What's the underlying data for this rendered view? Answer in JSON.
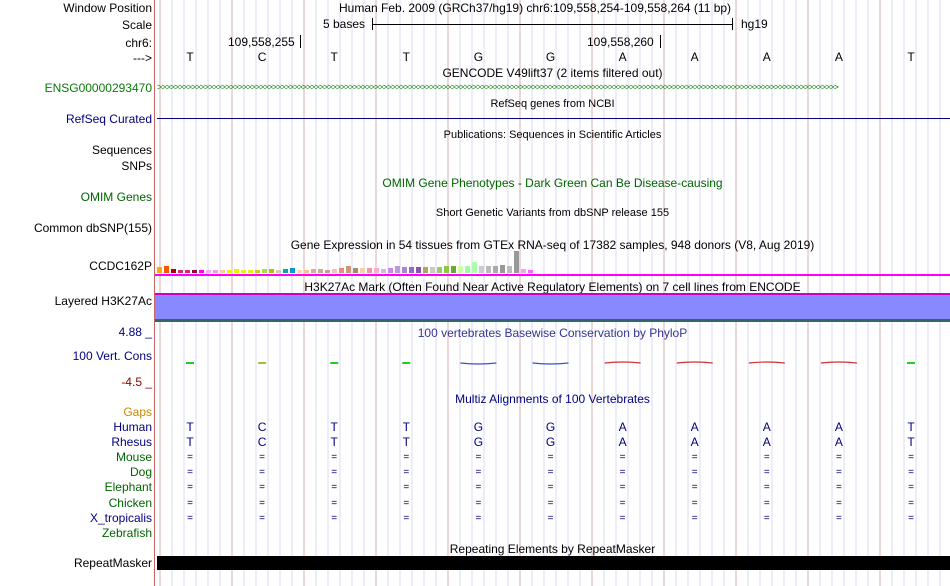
{
  "header": {
    "window_position_label": "Window Position",
    "window_position_value": "Human Feb. 2009 (GRCh37/hg19)   chr6:109,558,254-109,558,264 (11 bp)",
    "scale_label": "Scale",
    "scale_value": "5 bases",
    "scale_assembly": "hg19",
    "chrom_label": "chr6:",
    "coord_1": "109,558,255",
    "coord_2": "109,558,260",
    "strand_label": "--->"
  },
  "sequence": [
    "T",
    "C",
    "T",
    "T",
    "G",
    "G",
    "A",
    "A",
    "A",
    "A",
    "T"
  ],
  "tracks": {
    "gencode": {
      "center_label": "GENCODE V49lift37 (2 items filtered out)",
      "item_label": "ENSG00000293470"
    },
    "refseq": {
      "center_label": "RefSeq genes from NCBI",
      "side_label": "RefSeq Curated"
    },
    "publications": {
      "center_label": "Publications: Sequences in Scientific Articles",
      "side_label_1": "Sequences",
      "side_label_2": "SNPs"
    },
    "omim": {
      "center_label": "OMIM Gene Phenotypes - Dark Green Can Be Disease-causing",
      "side_label": "OMIM Genes"
    },
    "dbsnp": {
      "center_label": "Short Genetic Variants from dbSNP release 155",
      "side_label": "Common dbSNP(155)"
    },
    "gtex": {
      "center_label": "Gene Expression in 54 tissues from GTEx RNA-seq of 17382 samples, 948 donors (V8, Aug 2019)",
      "side_label": "CCDC162P",
      "bar_values": [
        6,
        7,
        4,
        3,
        3,
        3,
        3,
        3,
        3,
        3,
        3,
        4,
        3,
        3,
        3,
        4,
        4,
        3,
        4,
        5,
        3,
        3,
        4,
        4,
        3,
        4,
        5,
        7,
        5,
        5,
        5,
        5,
        4,
        5,
        7,
        6,
        6,
        6,
        6,
        6,
        6,
        7,
        7,
        7,
        7,
        11,
        7,
        7,
        7,
        8,
        7,
        22,
        4,
        3
      ],
      "bar_colors": [
        "#ffaa00",
        "#ff5500",
        "#aa0000",
        "#cc3366",
        "#cc3366",
        "#990033",
        "#ff00ff",
        "#ffaaff",
        "#ee99ee",
        "#ffcc99",
        "#eeee00",
        "#eeee00",
        "#eeee00",
        "#eeee00",
        "#cccc00",
        "#aadd44",
        "#bbbb00",
        "#ccccaa",
        "#00aaaa",
        "#0099cc",
        "#ffdd99",
        "#ffbb88",
        "#ddaa99",
        "#ccaa88",
        "#cc9999",
        "#ffbbbb",
        "#ee8877",
        "#cc9977",
        "#aa8866",
        "#ffccaa",
        "#ee99aa",
        "#ffaacc",
        "#ccbbdd",
        "#cc88ee",
        "#bb99dd",
        "#aa88cc",
        "#9966cc",
        "#8855aa",
        "#aaaa55",
        "#ccccbb",
        "#99cc66",
        "#88cc44",
        "#66aa33",
        "#ccffaa",
        "#99ff99",
        "#aaffaa",
        "#cccccc",
        "#bbbbbb",
        "#aaaaaa",
        "#999999",
        "#bbbbbb",
        "#999999",
        "#ff99ff",
        "#ff66ff"
      ]
    },
    "h3k27ac": {
      "center_label": "H3K27Ac Mark (Often Found Near Active Regulatory Elements) on 7 cell lines from ENCODE",
      "side_label": "Layered H3K27Ac"
    },
    "phylop": {
      "center_label": "100 vertebrates Basewise Conservation by PhyloP",
      "side_label": "100 Vert. Cons",
      "max_label": "4.88 _",
      "min_label": "-4.5 _"
    },
    "multiz": {
      "center_label": "Multiz Alignments of 100 Vertebrates",
      "gaps_label": "Gaps",
      "species": [
        {
          "name": "Human",
          "row": [
            "T",
            "C",
            "T",
            "T",
            "G",
            "G",
            "A",
            "A",
            "A",
            "A",
            "T"
          ]
        },
        {
          "name": "Rhesus",
          "row": [
            "T",
            "C",
            "T",
            "T",
            "G",
            "G",
            "A",
            "A",
            "A",
            "A",
            "T"
          ]
        },
        {
          "name": "Mouse",
          "row": [
            "=",
            "=",
            "=",
            "=",
            "=",
            "=",
            "=",
            "=",
            "=",
            "=",
            "="
          ]
        },
        {
          "name": "Dog",
          "row": [
            "=",
            "=",
            "=",
            "=",
            "=",
            "=",
            "=",
            "=",
            "=",
            "=",
            "="
          ]
        },
        {
          "name": "Elephant",
          "row": [
            "=",
            "=",
            "=",
            "=",
            "=",
            "=",
            "=",
            "=",
            "=",
            "=",
            "="
          ]
        },
        {
          "name": "Chicken",
          "row": [
            "=",
            "=",
            "=",
            "=",
            "=",
            "=",
            "=",
            "=",
            "=",
            "=",
            "="
          ]
        },
        {
          "name": "X_tropicalis",
          "row": [
            "=",
            "=",
            "=",
            "=",
            "=",
            "=",
            "=",
            "=",
            "=",
            "=",
            "="
          ]
        },
        {
          "name": "Zebrafish",
          "row": []
        }
      ]
    },
    "repeatmasker": {
      "center_label": "Repeating Elements by RepeatMasker",
      "side_label": "RepeatMasker"
    }
  },
  "colors": {
    "nav_blue": "#000080",
    "green": "#006400",
    "gene_green": "#0a7a0a",
    "orange": "#cc8800",
    "conservation_red": "#cc0000",
    "grid_red": "#c86464",
    "grid_blue": "#c8c8ff",
    "magenta": "#ff00ff",
    "h3k_fill": "#8888ff"
  }
}
